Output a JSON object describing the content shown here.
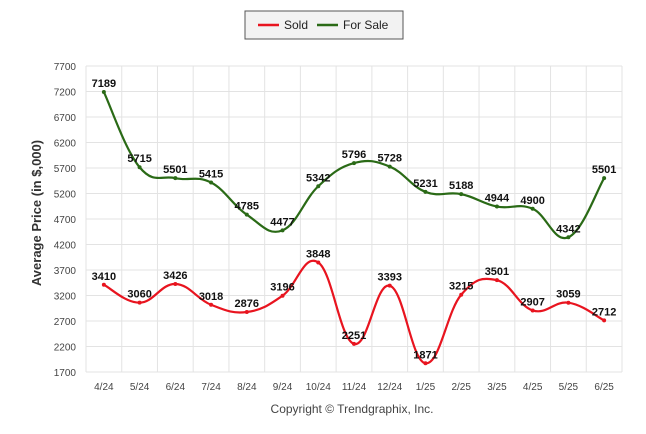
{
  "chart_data": {
    "type": "line",
    "categories": [
      "4/24",
      "5/24",
      "6/24",
      "7/24",
      "8/24",
      "9/24",
      "10/24",
      "11/24",
      "12/24",
      "1/25",
      "2/25",
      "3/25",
      "4/25",
      "5/25",
      "6/25"
    ],
    "series": [
      {
        "name": "Sold",
        "color": "#e8141f",
        "values": [
          3410,
          3060,
          3426,
          3018,
          2876,
          3196,
          3848,
          2251,
          3393,
          1871,
          3215,
          3501,
          2907,
          3059,
          2712
        ]
      },
      {
        "name": "For Sale",
        "color": "#2a6a16",
        "values": [
          7189,
          5715,
          5501,
          5415,
          4785,
          4477,
          5342,
          5796,
          5728,
          5231,
          5188,
          4944,
          4900,
          4342,
          5501
        ]
      }
    ],
    "ylabel": "Average Price (in $,000)",
    "xlabel": "",
    "ylim": [
      1700,
      7700
    ],
    "yticks": [
      1700,
      2200,
      2700,
      3200,
      3700,
      4200,
      4700,
      5200,
      5700,
      6200,
      6700,
      7200,
      7700
    ],
    "grid": true,
    "legend": "top-center"
  },
  "footer": "Copyright © Trendgraphix, Inc."
}
